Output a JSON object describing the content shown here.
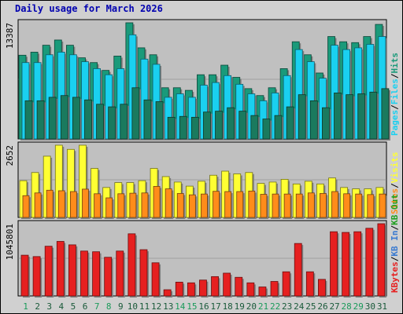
{
  "title": "Daily usage for March 2026",
  "colors": {
    "frame_bg": "#d0d0d0",
    "plot_bg": "#c0c0c0",
    "pages": "#1a7a5e",
    "files": "#1ad0f0",
    "hits": "#1a9a7a",
    "visits": "#ffff33",
    "sites": "#ff8c1a",
    "kbytes": "#e62020",
    "kb_in": "#3a7ad0",
    "kb_out": "#20a020",
    "day_label": "#1a5a3a",
    "weekend_label": "#1a9a5a"
  },
  "chart_data": [
    {
      "type": "bar",
      "panel": "hits",
      "axis_max_label": "13387",
      "ylim": [
        0,
        13387
      ],
      "legend": [
        "Pages",
        "Files",
        "Hits"
      ],
      "categories": [
        "1",
        "2",
        "3",
        "4",
        "5",
        "6",
        "7",
        "8",
        "9",
        "10",
        "11",
        "12",
        "13",
        "14",
        "15",
        "16",
        "17",
        "18",
        "19",
        "20",
        "21",
        "22",
        "23",
        "24",
        "25",
        "26",
        "27",
        "28",
        "29",
        "30",
        "31"
      ],
      "series": [
        {
          "name": "Hits",
          "values": [
            9650,
            10000,
            10800,
            11400,
            10800,
            9350,
            8800,
            7900,
            9550,
            13387,
            10500,
            9700,
            5900,
            5900,
            5600,
            7400,
            7400,
            8500,
            7100,
            5800,
            5000,
            5900,
            8100,
            11200,
            9700,
            7600,
            11800,
            11200,
            11100,
            11800,
            13200
          ]
        },
        {
          "name": "Files",
          "values": [
            8800,
            8800,
            9700,
            10000,
            9700,
            8900,
            8100,
            7400,
            8100,
            12000,
            9200,
            8600,
            4800,
            5200,
            4800,
            6200,
            6500,
            7300,
            6300,
            5200,
            4400,
            5300,
            7300,
            10300,
            8900,
            7000,
            10800,
            10300,
            10500,
            10900,
            11800
          ]
        },
        {
          "name": "Pages",
          "values": [
            4400,
            4400,
            4800,
            5000,
            4800,
            4500,
            4000,
            3700,
            4000,
            5900,
            4500,
            4300,
            2500,
            2600,
            2500,
            3100,
            3200,
            3600,
            3200,
            2700,
            2300,
            2700,
            3700,
            5100,
            4400,
            3600,
            5300,
            5100,
            5200,
            5400,
            5800
          ]
        }
      ]
    },
    {
      "type": "bar",
      "panel": "visits",
      "axis_max_label": "2652",
      "ylim": [
        0,
        2652
      ],
      "legend": [
        "Sites",
        "Visits"
      ],
      "categories": [
        "1",
        "2",
        "3",
        "4",
        "5",
        "6",
        "7",
        "8",
        "9",
        "10",
        "11",
        "12",
        "13",
        "14",
        "15",
        "16",
        "17",
        "18",
        "19",
        "20",
        "21",
        "22",
        "23",
        "24",
        "25",
        "26",
        "27",
        "28",
        "29",
        "30",
        "31"
      ],
      "series": [
        {
          "name": "Visits",
          "values": [
            1350,
            1650,
            2250,
            2652,
            2500,
            2652,
            1800,
            1100,
            1280,
            1280,
            1350,
            1800,
            1500,
            1300,
            1150,
            1330,
            1550,
            1700,
            1600,
            1650,
            1250,
            1300,
            1400,
            1230,
            1330,
            1230,
            1450,
            1100,
            1050,
            1050,
            1100
          ]
        },
        {
          "name": "Sites",
          "values": [
            800,
            900,
            1000,
            980,
            950,
            1040,
            870,
            720,
            870,
            890,
            900,
            1140,
            1050,
            880,
            830,
            860,
            960,
            950,
            950,
            970,
            850,
            860,
            860,
            860,
            900,
            880,
            950,
            870,
            860,
            840,
            860
          ]
        }
      ]
    },
    {
      "type": "bar",
      "panel": "kbytes",
      "axis_max_label": "1045801",
      "ylim": [
        0,
        1045801
      ],
      "legend": [
        "KBytes",
        "KB In",
        "KB Out"
      ],
      "categories": [
        "1",
        "2",
        "3",
        "4",
        "5",
        "6",
        "7",
        "8",
        "9",
        "10",
        "11",
        "12",
        "13",
        "14",
        "15",
        "16",
        "17",
        "18",
        "19",
        "20",
        "21",
        "22",
        "23",
        "24",
        "25",
        "26",
        "27",
        "28",
        "29",
        "30",
        "31"
      ],
      "series": [
        {
          "name": "KBytes",
          "values": [
            590000,
            570000,
            720000,
            790000,
            740000,
            650000,
            640000,
            560000,
            650000,
            900000,
            670000,
            480000,
            90000,
            200000,
            190000,
            230000,
            280000,
            330000,
            270000,
            190000,
            130000,
            210000,
            350000,
            760000,
            350000,
            240000,
            930000,
            920000,
            930000,
            980000,
            1045801
          ]
        }
      ]
    }
  ]
}
